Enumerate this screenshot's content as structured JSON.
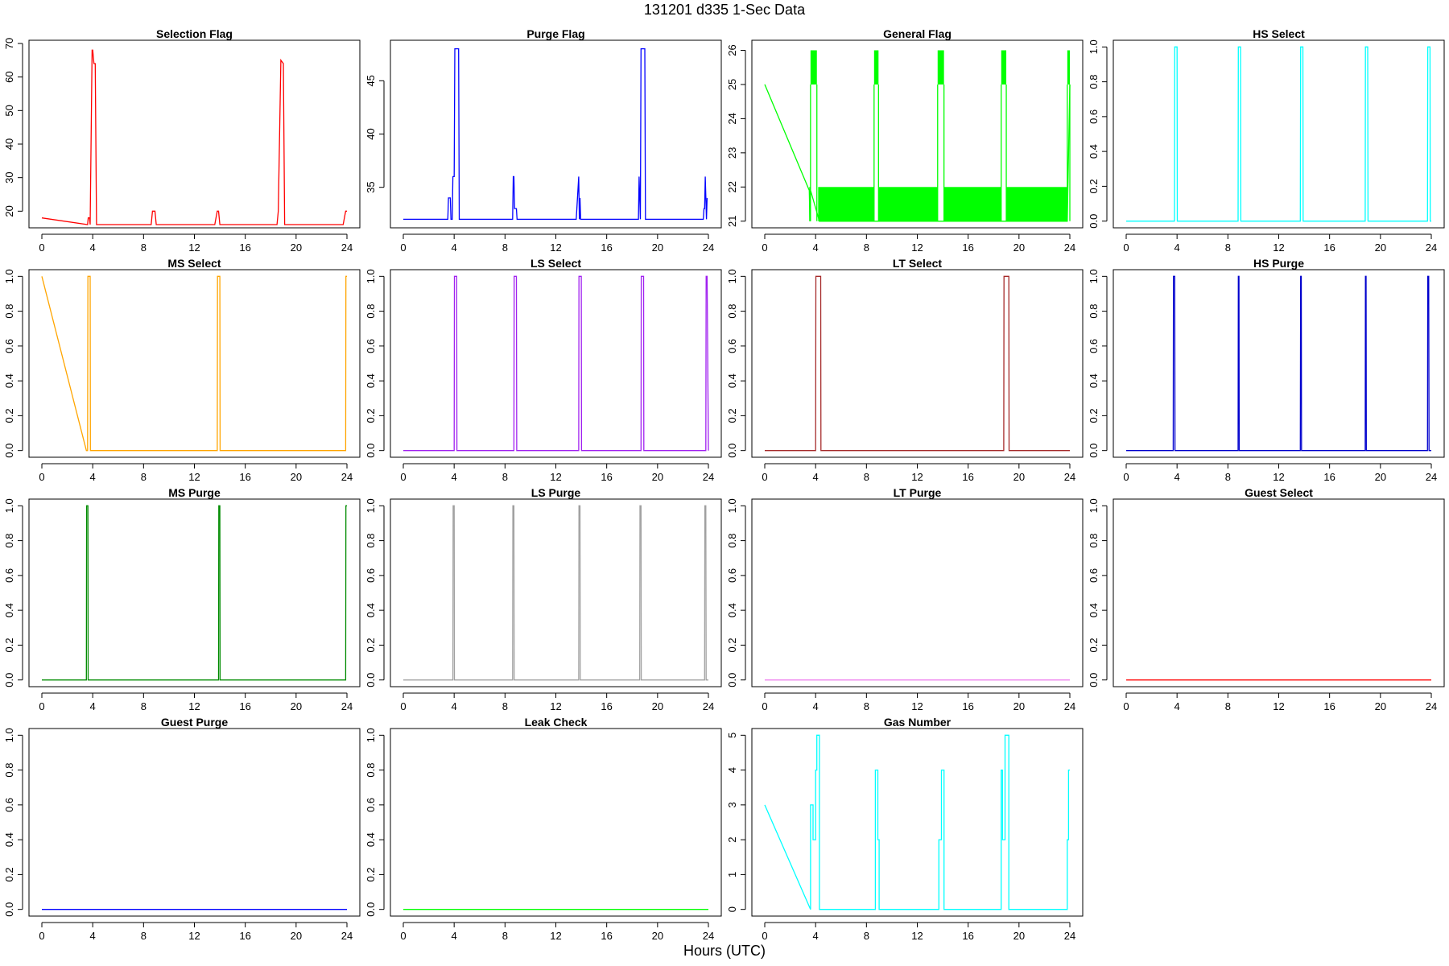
{
  "page_title": "131201   d335   1-Sec Data",
  "x_axis_title": "Hours (UTC)",
  "chart_data": [
    {
      "type": "line",
      "title": "Selection Flag",
      "color": "#ff0000",
      "xlim": [
        0,
        24
      ],
      "ylim": [
        16,
        70
      ],
      "xticks": [
        "0",
        "4",
        "8",
        "12",
        "16",
        "20",
        "24"
      ],
      "yticks": [
        20,
        30,
        40,
        50,
        60,
        70
      ],
      "x": [
        0,
        3.6,
        3.65,
        3.75,
        3.8,
        3.95,
        4.0,
        4.1,
        4.2,
        4.3,
        8.6,
        8.7,
        8.9,
        9.0,
        13.6,
        13.7,
        13.8,
        13.9,
        14.0,
        18.5,
        18.6,
        18.8,
        19.0,
        19.1,
        23.7,
        23.8,
        23.9,
        24
      ],
      "y": [
        18,
        16,
        18,
        18,
        16,
        68,
        68,
        64,
        64,
        16,
        16,
        20,
        20,
        16,
        16,
        18,
        20,
        20,
        16,
        16,
        20,
        65,
        64,
        16,
        16,
        18,
        20,
        20
      ]
    },
    {
      "type": "line",
      "title": "Purge Flag",
      "color": "#0000ff",
      "xlim": [
        0,
        24
      ],
      "ylim": [
        31.5,
        48.5
      ],
      "xticks": [
        "0",
        "4",
        "8",
        "12",
        "16",
        "20",
        "24"
      ],
      "yticks": [
        35,
        40,
        45
      ],
      "x": [
        0,
        3.5,
        3.55,
        3.7,
        3.75,
        3.85,
        3.9,
        4.0,
        4.05,
        4.35,
        4.4,
        8.6,
        8.65,
        8.7,
        8.75,
        8.9,
        8.95,
        13.6,
        13.65,
        13.8,
        13.85,
        13.9,
        13.95,
        18.5,
        18.55,
        18.65,
        18.7,
        19.0,
        19.05,
        23.6,
        23.65,
        23.7,
        23.75,
        23.85,
        23.9
      ],
      "y": [
        32,
        32,
        34,
        34,
        32,
        32,
        36,
        36,
        48,
        48,
        32,
        32,
        36,
        36,
        33,
        33,
        32,
        32,
        33,
        36,
        32,
        34,
        32,
        32,
        36,
        32,
        48,
        48,
        32,
        32,
        33,
        33,
        36,
        32,
        34
      ]
    },
    {
      "type": "line",
      "title": "General Flag",
      "color": "#00ff00",
      "xlim": [
        0,
        24
      ],
      "ylim": [
        20.9,
        26.2
      ],
      "xticks": [
        "0",
        "4",
        "8",
        "12",
        "16",
        "20",
        "24"
      ],
      "yticks": [
        21,
        22,
        23,
        24,
        25,
        26
      ],
      "x": [
        0,
        3.5,
        3.55,
        3.6,
        4.3,
        8.6,
        8.9,
        13.6,
        14.0,
        18.6,
        18.9,
        23.8,
        24
      ],
      "y": [
        25,
        21.9,
        21,
        21.9,
        21,
        21,
        21,
        21,
        21,
        21,
        21,
        21,
        25
      ]
    },
    {
      "type": "line",
      "title": "HS Select",
      "color": "#00ffff",
      "xlim": [
        0,
        24
      ],
      "ylim": [
        -0.02,
        1.02
      ],
      "xticks": [
        "0",
        "4",
        "8",
        "12",
        "16",
        "20",
        "24"
      ],
      "yticks": [
        0.0,
        0.2,
        0.4,
        0.6,
        0.8,
        1.0
      ],
      "x": [
        0,
        3.8,
        3.82,
        4.0,
        4.02,
        8.8,
        8.82,
        9.0,
        9.02,
        13.7,
        13.72,
        13.9,
        13.92,
        18.8,
        18.82,
        19.0,
        19.02,
        23.7,
        23.72,
        23.9,
        23.92,
        24
      ],
      "y": [
        0,
        0,
        1,
        1,
        0,
        0,
        1,
        1,
        0,
        0,
        1,
        1,
        0,
        0,
        1,
        1,
        0,
        0,
        1,
        1,
        0,
        0
      ]
    },
    {
      "type": "line",
      "title": "MS Select",
      "color": "#ffa500",
      "xlim": [
        0,
        24
      ],
      "ylim": [
        -0.02,
        1.02
      ],
      "xticks": [
        "0",
        "4",
        "8",
        "12",
        "16",
        "20",
        "24"
      ],
      "yticks": [
        0.0,
        0.2,
        0.4,
        0.6,
        0.8,
        1.0
      ],
      "x": [
        0,
        3.5,
        3.6,
        3.62,
        3.8,
        3.82,
        13.8,
        13.82,
        14.0,
        14.02,
        23.9,
        23.92,
        24
      ],
      "y": [
        1,
        0,
        0,
        1,
        1,
        0,
        0,
        1,
        1,
        0,
        0,
        1,
        1
      ]
    },
    {
      "type": "line",
      "title": "LS Select",
      "color": "#a020f0",
      "xlim": [
        0,
        24
      ],
      "ylim": [
        -0.02,
        1.02
      ],
      "xticks": [
        "0",
        "4",
        "8",
        "12",
        "16",
        "20",
        "24"
      ],
      "yticks": [
        0.0,
        0.2,
        0.4,
        0.6,
        0.8,
        1.0
      ],
      "x": [
        0,
        4.0,
        4.02,
        4.2,
        4.22,
        8.7,
        8.72,
        8.9,
        8.92,
        13.8,
        13.82,
        14.0,
        14.02,
        18.7,
        18.72,
        18.9,
        18.92,
        23.8,
        23.82,
        23.9,
        24
      ],
      "y": [
        0,
        0,
        1,
        1,
        0,
        0,
        1,
        1,
        0,
        0,
        1,
        1,
        0,
        0,
        1,
        1,
        0,
        0,
        1,
        1,
        0
      ]
    },
    {
      "type": "line",
      "title": "LT Select",
      "color": "#a52a2a",
      "xlim": [
        0,
        24
      ],
      "ylim": [
        -0.02,
        1.02
      ],
      "xticks": [
        "0",
        "4",
        "8",
        "12",
        "16",
        "20",
        "24"
      ],
      "yticks": [
        0.0,
        0.2,
        0.4,
        0.6,
        0.8,
        1.0
      ],
      "x": [
        0,
        4.0,
        4.02,
        4.4,
        4.42,
        18.8,
        18.82,
        19.2,
        19.22,
        24
      ],
      "y": [
        0,
        0,
        1,
        1,
        0,
        0,
        1,
        1,
        0,
        0
      ]
    },
    {
      "type": "line",
      "title": "HS Purge",
      "color": "#0000cd",
      "xlim": [
        0,
        24
      ],
      "ylim": [
        -0.02,
        1.02
      ],
      "xticks": [
        "0",
        "4",
        "8",
        "12",
        "16",
        "20",
        "24"
      ],
      "yticks": [
        0.0,
        0.2,
        0.4,
        0.6,
        0.8,
        1.0
      ],
      "x": [
        0,
        3.7,
        3.72,
        3.82,
        3.84,
        8.8,
        8.82,
        8.87,
        8.89,
        13.7,
        13.72,
        13.77,
        13.79,
        18.8,
        18.82,
        18.87,
        18.89,
        23.7,
        23.72,
        23.8,
        23.82,
        24
      ],
      "y": [
        0,
        0,
        1,
        1,
        0,
        0,
        1,
        1,
        0,
        0,
        1,
        1,
        0,
        0,
        1,
        1,
        0,
        0,
        1,
        1,
        0,
        0
      ]
    },
    {
      "type": "line",
      "title": "MS Purge",
      "color": "#008b00",
      "xlim": [
        0,
        24
      ],
      "ylim": [
        -0.02,
        1.02
      ],
      "xticks": [
        "0",
        "4",
        "8",
        "12",
        "16",
        "20",
        "24"
      ],
      "yticks": [
        0.0,
        0.2,
        0.4,
        0.6,
        0.8,
        1.0
      ],
      "x": [
        0,
        3.5,
        3.52,
        3.62,
        3.64,
        13.9,
        13.92,
        14.0,
        14.02,
        23.9,
        23.92,
        24
      ],
      "y": [
        0,
        0,
        1,
        1,
        0,
        0,
        1,
        1,
        0,
        0,
        1,
        1
      ]
    },
    {
      "type": "line",
      "title": "LS Purge",
      "color": "#a0a0a0",
      "xlim": [
        0,
        24
      ],
      "ylim": [
        -0.02,
        1.02
      ],
      "xticks": [
        "0",
        "4",
        "8",
        "12",
        "16",
        "20",
        "24"
      ],
      "yticks": [
        0.0,
        0.2,
        0.4,
        0.6,
        0.8,
        1.0
      ],
      "x": [
        0,
        3.9,
        3.92,
        4.0,
        4.02,
        8.6,
        8.62,
        8.7,
        8.72,
        13.8,
        13.82,
        13.9,
        13.92,
        18.6,
        18.62,
        18.7,
        18.72,
        23.7,
        23.72,
        23.8,
        23.82,
        24
      ],
      "y": [
        0,
        0,
        1,
        1,
        0,
        0,
        1,
        1,
        0,
        0,
        1,
        1,
        0,
        0,
        1,
        1,
        0,
        0,
        1,
        1,
        0,
        0
      ]
    },
    {
      "type": "line",
      "title": "LT Purge",
      "color": "#ee82ee",
      "xlim": [
        0,
        24
      ],
      "ylim": [
        -0.02,
        1.02
      ],
      "xticks": [
        "0",
        "4",
        "8",
        "12",
        "16",
        "20",
        "24"
      ],
      "yticks": [
        0.0,
        0.2,
        0.4,
        0.6,
        0.8,
        1.0
      ],
      "x": [
        0,
        24
      ],
      "y": [
        0,
        0
      ]
    },
    {
      "type": "line",
      "title": "Guest Select",
      "color": "#ff0000",
      "xlim": [
        0,
        24
      ],
      "ylim": [
        -0.02,
        1.02
      ],
      "xticks": [
        "0",
        "4",
        "8",
        "12",
        "16",
        "20",
        "24"
      ],
      "yticks": [
        0.0,
        0.2,
        0.4,
        0.6,
        0.8,
        1.0
      ],
      "x": [
        0,
        24
      ],
      "y": [
        0,
        0
      ]
    },
    {
      "type": "line",
      "title": "Guest Purge",
      "color": "#0000ff",
      "xlim": [
        0,
        24
      ],
      "ylim": [
        -0.02,
        1.02
      ],
      "xticks": [
        "0",
        "4",
        "8",
        "12",
        "16",
        "20",
        "24"
      ],
      "yticks": [
        0.0,
        0.2,
        0.4,
        0.6,
        0.8,
        1.0
      ],
      "x": [
        0,
        24
      ],
      "y": [
        0,
        0
      ]
    },
    {
      "type": "line",
      "title": "Leak Check",
      "color": "#00ff00",
      "xlim": [
        0,
        24
      ],
      "ylim": [
        -0.02,
        1.02
      ],
      "xticks": [
        "0",
        "4",
        "8",
        "12",
        "16",
        "20",
        "24"
      ],
      "yticks": [
        0.0,
        0.2,
        0.4,
        0.6,
        0.8,
        1.0
      ],
      "x": [
        0,
        24
      ],
      "y": [
        0,
        0
      ]
    },
    {
      "type": "line",
      "title": "Gas Number",
      "color": "#00ffff",
      "xlim": [
        0,
        24
      ],
      "ylim": [
        -0.1,
        5.1
      ],
      "xticks": [
        "0",
        "4",
        "8",
        "12",
        "16",
        "20",
        "24"
      ],
      "yticks": [
        0,
        1,
        2,
        3,
        4,
        5
      ],
      "x": [
        0,
        3.6,
        3.6,
        3.8,
        3.8,
        4.0,
        4.0,
        4.1,
        4.1,
        4.3,
        4.3,
        8.7,
        8.7,
        8.9,
        8.9,
        9.0,
        9.0,
        13.7,
        13.7,
        13.9,
        13.9,
        14.1,
        14.1,
        18.6,
        18.6,
        18.7,
        18.7,
        18.9,
        18.9,
        19.2,
        19.2,
        23.8,
        23.8,
        23.9,
        23.9,
        24
      ],
      "y": [
        3,
        0,
        3,
        3,
        2,
        2,
        4,
        4,
        5,
        5,
        0,
        0,
        4,
        4,
        2,
        2,
        0,
        0,
        2,
        2,
        4,
        4,
        0,
        0,
        4,
        4,
        2,
        2,
        5,
        5,
        0,
        0,
        2,
        2,
        4,
        4
      ]
    }
  ]
}
